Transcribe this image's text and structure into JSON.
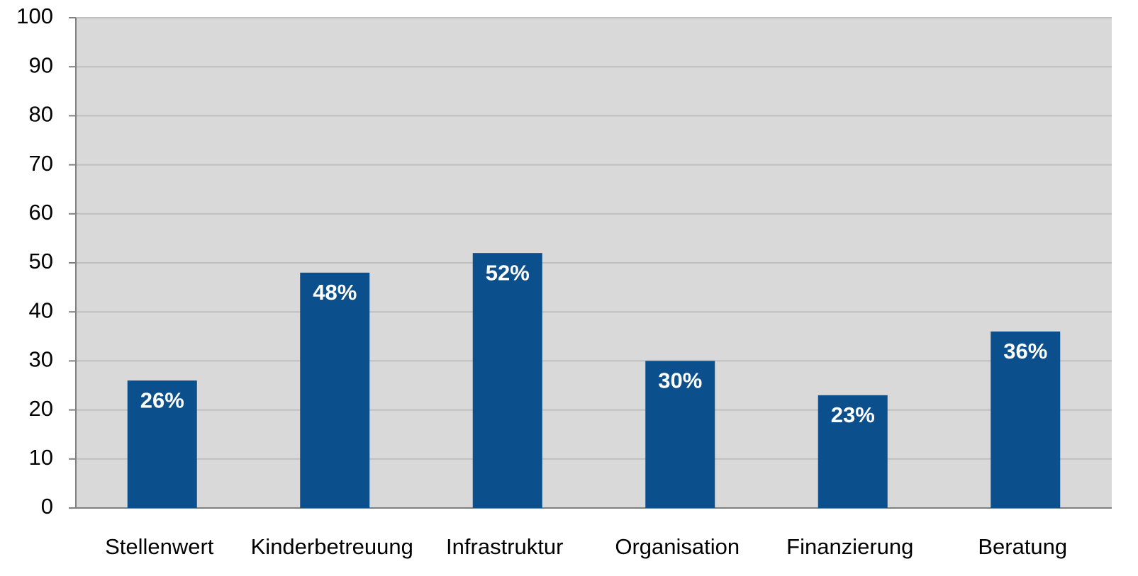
{
  "chart_data": {
    "type": "bar",
    "categories": [
      "Stellenwert",
      "Kinderbetreuung",
      "Infrastruktur",
      "Organisation",
      "Finanzierung",
      "Beratung"
    ],
    "values": [
      26,
      48,
      52,
      30,
      23,
      36
    ],
    "value_labels": [
      "26%",
      "48%",
      "52%",
      "30%",
      "23%",
      "36%"
    ],
    "color": "#0b4f8c",
    "ylim": [
      0,
      100
    ],
    "yticks": [
      0,
      10,
      20,
      30,
      40,
      50,
      60,
      70,
      80,
      90,
      100
    ],
    "grid": true
  }
}
